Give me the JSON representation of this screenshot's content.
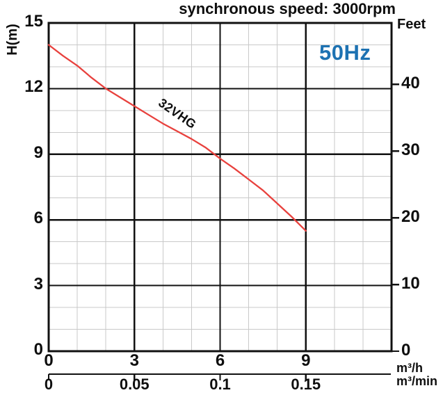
{
  "title": "synchronous speed: 3000rpm",
  "frequency_label": "50Hz",
  "curve_label": "32VHG",
  "colors": {
    "curve_red": "#e8413d",
    "accent_blue": "#1d72b2",
    "grid_minor": "#c9c9c9",
    "grid_major": "#111111",
    "text": "#0e0e0e",
    "background": "#ffffff"
  },
  "axes": {
    "left": {
      "label": "H(m)",
      "ticks": [
        15,
        12,
        9,
        6,
        3,
        0
      ]
    },
    "right": {
      "label": "Feet",
      "ticks": [
        40,
        30,
        20,
        10,
        0
      ]
    },
    "bottom_primary": {
      "unit": "m³/h",
      "ticks": [
        "0",
        "3",
        "6",
        "9"
      ]
    },
    "bottom_secondary": {
      "unit": "m³/min",
      "ticks": [
        "0",
        "0.05",
        "0.1",
        "0.15"
      ]
    }
  },
  "chart_data": {
    "type": "line",
    "title": "synchronous speed: 3000rpm",
    "xlabel": "m³/h",
    "xlabel_secondary": "m³/min",
    "ylabel": "H(m)",
    "ylabel_secondary": "Feet",
    "xlim": [
      0,
      12
    ],
    "ylim": [
      0,
      15
    ],
    "x_major_ticks": [
      0,
      3,
      6,
      9
    ],
    "y_major_ticks": [
      0,
      3,
      6,
      9,
      12,
      15
    ],
    "right_axis_ticks_feet": [
      40,
      30,
      20,
      10,
      0
    ],
    "secondary_x_ticks_m3min": [
      0,
      0.05,
      0.1,
      0.15
    ],
    "grid": "major+minor",
    "annotations": [
      "50Hz"
    ],
    "series": [
      {
        "name": "32VHG",
        "x": [
          0,
          0.5,
          1,
          1.5,
          2,
          2.5,
          3,
          3.5,
          4,
          4.5,
          5,
          5.5,
          6,
          6.5,
          7,
          7.5,
          8,
          8.5,
          9
        ],
        "y": [
          14.0,
          13.5,
          13.05,
          12.5,
          12.0,
          11.6,
          11.2,
          10.8,
          10.4,
          10.05,
          9.7,
          9.3,
          8.8,
          8.35,
          7.85,
          7.35,
          6.75,
          6.15,
          5.5
        ]
      }
    ]
  }
}
